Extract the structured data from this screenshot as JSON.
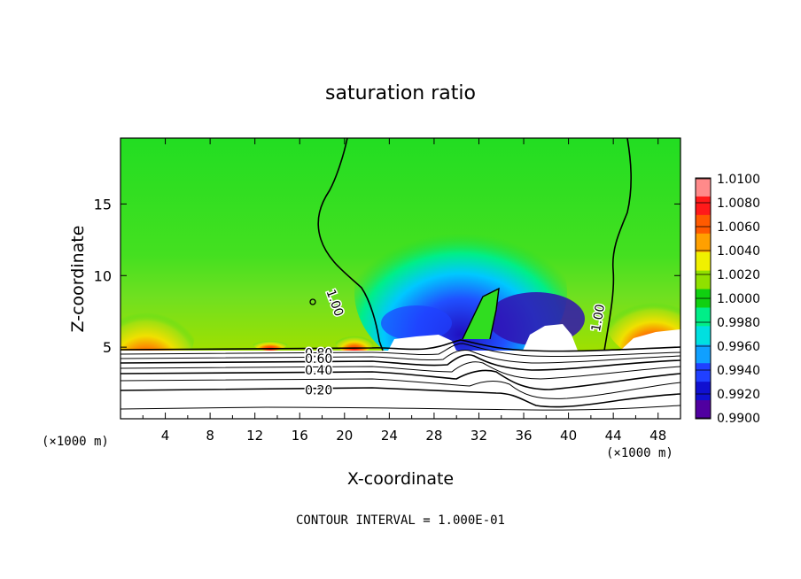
{
  "chart_data": {
    "type": "heatmap",
    "title": "saturation ratio",
    "xlabel": "X-coordinate",
    "ylabel": "Z-coordinate",
    "x_unit": "(×1000 m)",
    "x_unit_right": "(×1000 m)",
    "xlim": [
      0,
      50
    ],
    "ylim": [
      0,
      19.6
    ],
    "x_ticks": [
      4,
      8,
      12,
      16,
      20,
      24,
      28,
      32,
      36,
      40,
      44,
      48
    ],
    "y_ticks": [
      5,
      10,
      15
    ],
    "footnote": "CONTOUR INTERVAL = 1.000E-01",
    "colorbar": {
      "labels": [
        "1.0100",
        "1.0080",
        "1.0060",
        "1.0040",
        "1.0020",
        "1.0000",
        "0.9980",
        "0.9960",
        "0.9940",
        "0.9920",
        "0.9900"
      ],
      "colors": [
        "#ff8a8a",
        "#ff1a1a",
        "#ff5a00",
        "#ffa000",
        "#f0f000",
        "#90e000",
        "#10d010",
        "#00ee88",
        "#00e0e0",
        "#10a0ff",
        "#2040ff",
        "#1010d0",
        "#5000a0"
      ]
    },
    "contour_labels": [
      {
        "text": "1.00",
        "x": 18.8,
        "y": 8.0,
        "rotate": 70
      },
      {
        "text": "1.00",
        "x": 43.0,
        "y": 7.0,
        "rotate": -80
      },
      {
        "text": "0.80",
        "x": 17.7,
        "y": 4.3
      },
      {
        "text": "0.60",
        "x": 17.7,
        "y": 3.9
      },
      {
        "text": "0.40",
        "x": 17.7,
        "y": 3.1
      },
      {
        "text": "0.20",
        "x": 17.7,
        "y": 1.7
      }
    ]
  }
}
